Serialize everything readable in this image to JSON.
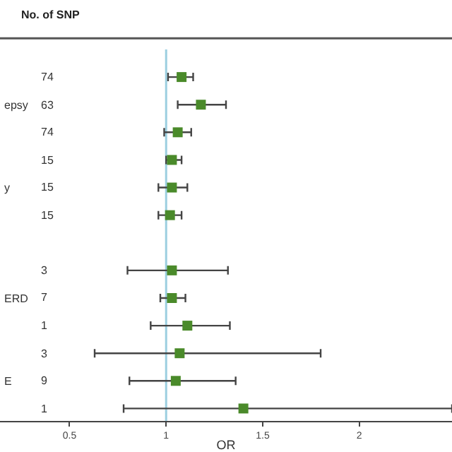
{
  "chart_data": {
    "type": "scatter",
    "orientation": "horizontal",
    "categories": [
      null,
      "epsy",
      null,
      null,
      "y",
      null,
      null,
      null,
      "ERD",
      null,
      null,
      "E",
      null
    ],
    "values": [
      1.08,
      1.18,
      1.06,
      1.03,
      1.03,
      1.02,
      null,
      1.03,
      1.03,
      1.11,
      1.07,
      1.05,
      1.4
    ],
    "errors": [
      [
        1.01,
        1.14
      ],
      [
        1.06,
        1.31
      ],
      [
        0.99,
        1.13
      ],
      [
        1.0,
        1.08
      ],
      [
        0.96,
        1.11
      ],
      [
        0.96,
        1.08
      ],
      null,
      [
        0.8,
        1.32
      ],
      [
        0.97,
        1.1
      ],
      [
        0.92,
        1.33
      ],
      [
        0.63,
        1.8
      ],
      [
        0.81,
        1.36
      ],
      [
        0.78,
        2.48
      ]
    ],
    "color": "#4a8a2a",
    "marker": "square",
    "xlim": [
      0.14,
      2.48
    ],
    "xticks": [
      0.5,
      1,
      1.5,
      2
    ],
    "xlabel": "OR",
    "ref_lines": [
      {
        "axis": "x",
        "value": 1,
        "color": "#9ccfe0"
      }
    ],
    "grid": false,
    "annotations": [
      "No. of SNP",
      "74",
      "63",
      "74",
      "15",
      "15",
      "15",
      "3",
      "7",
      "1",
      "3",
      "9",
      "1"
    ]
  }
}
